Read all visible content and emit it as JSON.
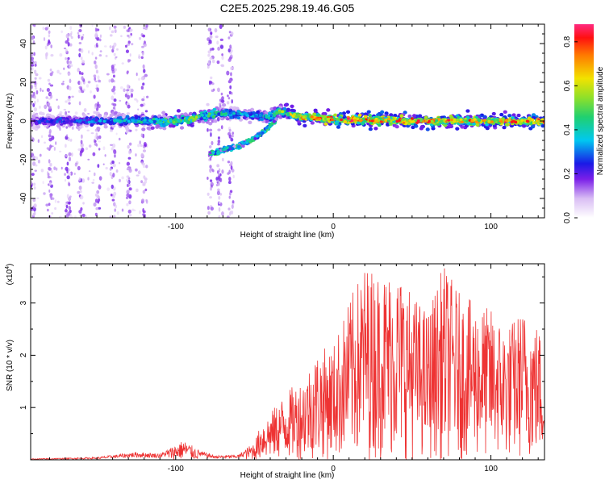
{
  "title": "C2E5.2025.298.19.46.G05",
  "chart_data": [
    {
      "type": "heatmap",
      "xlabel": "Height of straight line (km)",
      "ylabel": "Frequency (Hz)",
      "xlim": [
        -192,
        134
      ],
      "ylim": [
        -50,
        50
      ],
      "x_ticks": [
        -100,
        0,
        100
      ],
      "x_tick_labels": [
        "-100",
        "0",
        "100"
      ],
      "y_ticks": [
        -40,
        -20,
        0,
        20,
        40
      ],
      "y_tick_labels": [
        "-40",
        "-20",
        "0",
        "20",
        "40"
      ],
      "colorbar": {
        "label": "Normalized spectral amplitude",
        "range": [
          0,
          0.88
        ],
        "ticks": [
          0.0,
          0.2,
          0.4,
          0.6,
          0.8
        ],
        "tick_labels": [
          "0.0",
          "0.2",
          "0.4",
          "0.6",
          "0.8"
        ]
      },
      "ridge": {
        "description_points_x": [
          -192,
          -150,
          -120,
          -100,
          -90,
          -80,
          -70,
          -60,
          -50,
          -40,
          -35,
          -30,
          -20,
          0,
          50,
          100,
          134
        ],
        "center_freq": [
          0,
          0,
          0,
          0,
          1,
          3,
          4,
          4,
          3,
          2,
          5,
          4,
          2,
          1,
          0,
          0,
          0
        ],
        "amplitude": [
          0.25,
          0.35,
          0.45,
          0.55,
          0.6,
          0.5,
          0.45,
          0.4,
          0.4,
          0.45,
          0.55,
          0.6,
          0.75,
          0.85,
          0.8,
          0.8,
          0.88
        ]
      },
      "branch": {
        "x": [
          -78,
          -70,
          -60,
          -50,
          -42,
          -36
        ],
        "freq": [
          -17,
          -15,
          -13,
          -9,
          -4,
          1
        ]
      },
      "noise_columns_x": [
        -190,
        -180,
        -168,
        -160,
        -150,
        -140,
        -130,
        -120,
        -78,
        -72,
        -65
      ],
      "noise_column_span_x": [
        -192,
        -120
      ]
    },
    {
      "type": "line",
      "xlabel": "Height of straight line (km)",
      "ylabel": "SNR (10 * v/v)",
      "y_multiplier_label": "(x10^4)",
      "xlim": [
        -192,
        134
      ],
      "ylim": [
        0,
        3.75
      ],
      "x_ticks": [
        -100,
        0,
        100
      ],
      "x_tick_labels": [
        "-100",
        "0",
        "100"
      ],
      "y_ticks": [
        1,
        2,
        3
      ],
      "y_tick_labels": [
        "1",
        "2",
        "3"
      ],
      "series": [
        {
          "name": "SNR",
          "color": "#ee3333",
          "envelope_x": [
            -192,
            -150,
            -125,
            -110,
            -95,
            -85,
            -75,
            -60,
            -50,
            -45,
            -40,
            -30,
            -20,
            -10,
            0,
            10,
            20,
            30,
            40,
            50,
            60,
            70,
            80,
            90,
            100,
            110,
            120,
            130,
            134
          ],
          "envelope_max": [
            0.02,
            0.05,
            0.15,
            0.12,
            0.38,
            0.18,
            0.08,
            0.1,
            0.35,
            0.75,
            0.9,
            1.3,
            1.55,
            2.1,
            2.2,
            3.05,
            3.75,
            3.6,
            3.7,
            3.2,
            2.85,
            3.75,
            3.2,
            3.0,
            2.9,
            2.55,
            2.9,
            2.6,
            2.2
          ]
        }
      ]
    }
  ]
}
